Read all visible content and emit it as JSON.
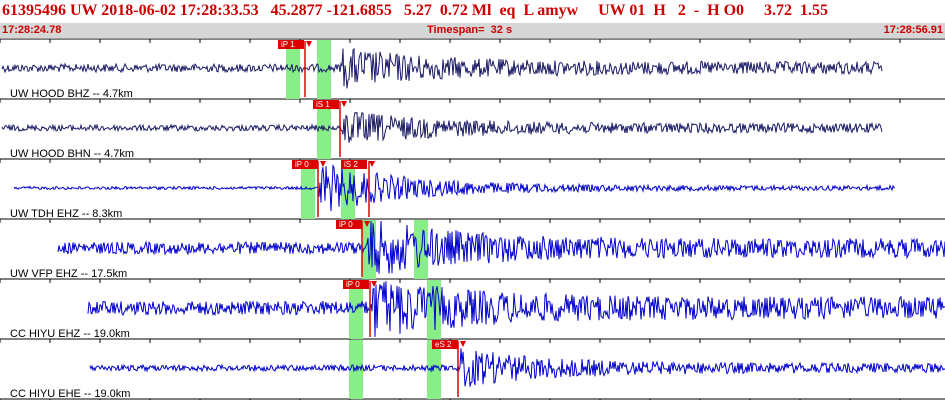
{
  "header": {
    "title": "61395496 UW 2018-06-02 17:28:33.53   45.2877 -121.6855   5.27  0.72 Ml  eq  L amyw     UW 01  H   2  -  H O0     3.72  1.55",
    "start_time": "17:28:24.78",
    "timespan": "Timespan=  32 s",
    "end_time": "17:28:56.91"
  },
  "colors": {
    "title": "#cc0000",
    "trace_hood": "#1a1a66",
    "trace": "#0000cc",
    "pick": "#dd0000",
    "window": "#88ee88",
    "subbar": "#d6d6d6"
  },
  "channels": [
    {
      "label": "UW HOOD BHZ -- 4.7km",
      "trace_color": "#1a1a66",
      "picks": [
        {
          "label": "iP 1"
        }
      ],
      "onset": 0.32,
      "windows": 2
    },
    {
      "label": "UW HOOD BHN -- 4.7km",
      "trace_color": "#1a1a66",
      "picks": [
        {
          "label": "iS 1"
        }
      ],
      "onset": 0.36,
      "windows": 1
    },
    {
      "label": "UW TDH EHZ -- 8.3km",
      "trace_color": "#0000cc",
      "picks": [
        {
          "label": "iP 0"
        },
        {
          "label": "iS 2"
        }
      ],
      "onset": 0.33,
      "windows": 2
    },
    {
      "label": "UW VFP EHZ -- 17.5km",
      "trace_color": "#0000cc",
      "picks": [
        {
          "label": "iP 0"
        }
      ],
      "onset": 0.38,
      "windows": 2
    },
    {
      "label": "CC HIYU EHZ -- 19.0km",
      "trace_color": "#0000cc",
      "picks": [
        {
          "label": "iP 0"
        }
      ],
      "onset": 0.39,
      "windows": 2
    },
    {
      "label": "CC HIYU EHE -- 19.0km",
      "trace_color": "#0000cc",
      "picks": [
        {
          "label": "eS 2"
        }
      ],
      "onset": 0.48,
      "windows": 2
    }
  ]
}
